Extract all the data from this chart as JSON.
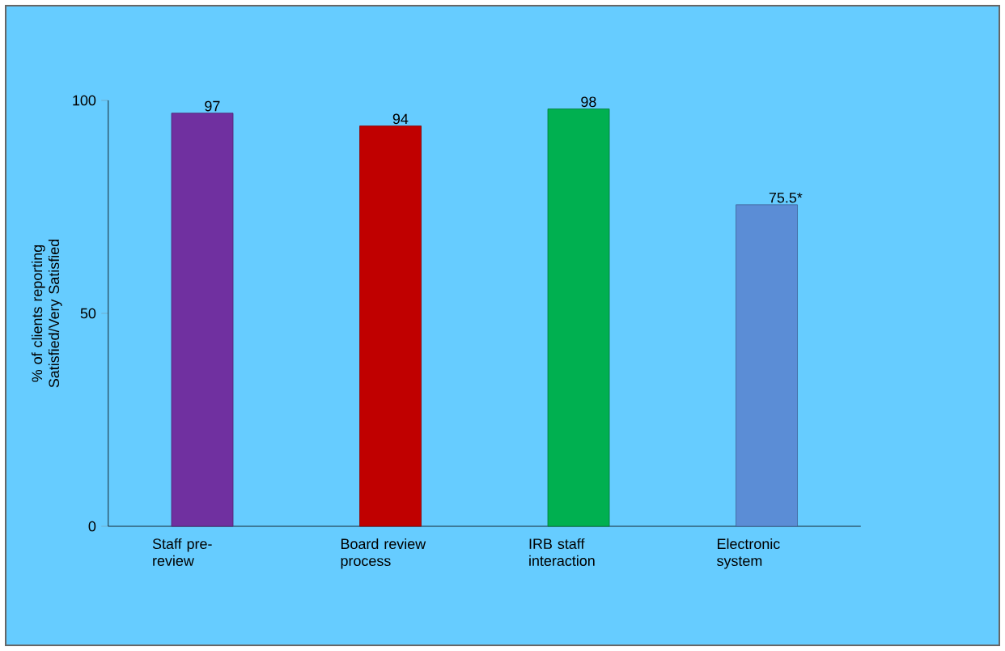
{
  "chart_data": {
    "type": "bar",
    "ylabel": "% of clients reporting Satisfied/Very Satisfied",
    "categories": [
      "Staff pre-review",
      "Board review process",
      "IRB staff interaction",
      "Electronic system"
    ],
    "values": [
      97,
      94,
      98,
      75.5
    ],
    "colors": [
      "#7030a0",
      "#c00000",
      "#00b050",
      "#5b8dd6"
    ],
    "value_labels": [
      "97",
      "94",
      "98",
      "75.5*"
    ],
    "ylim": [
      0,
      100
    ],
    "yticks": [
      0,
      50,
      100
    ],
    "grid": false
  }
}
